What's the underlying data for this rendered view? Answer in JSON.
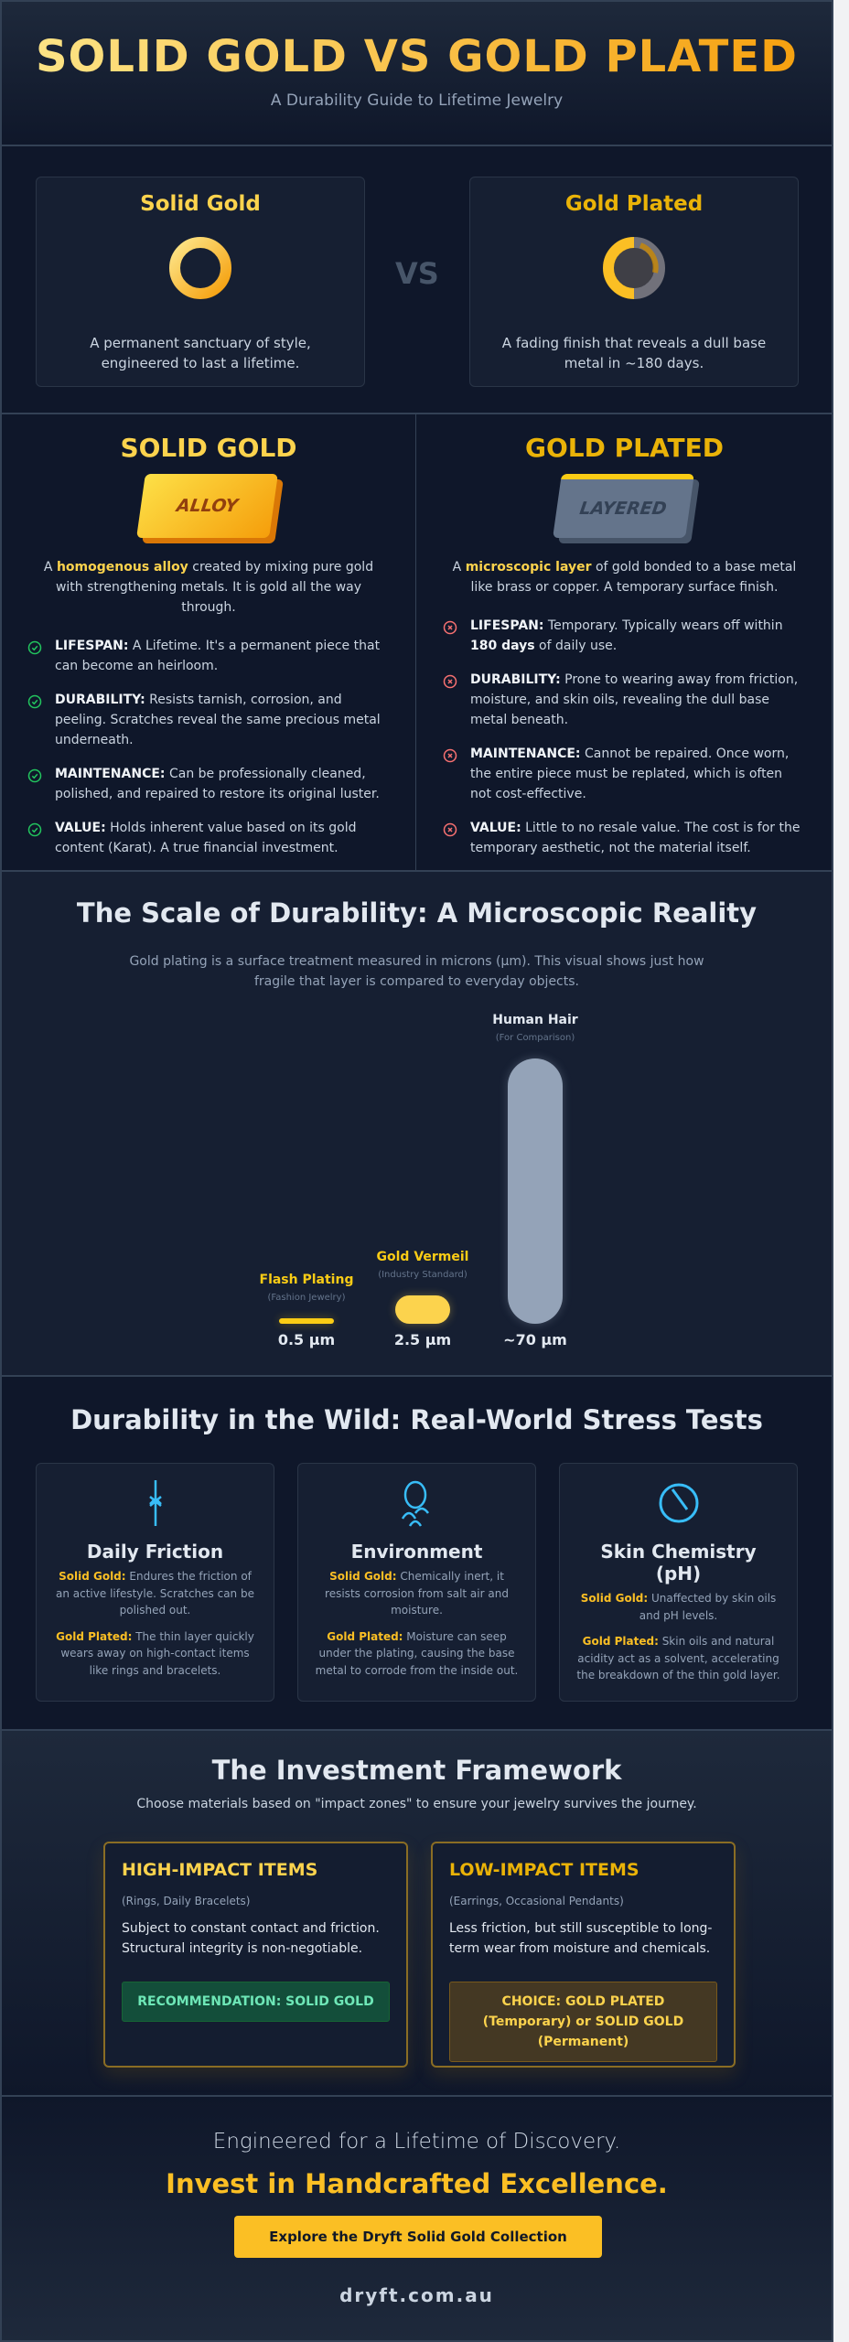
{
  "header": {
    "title": "SOLID GOLD VS GOLD PLATED",
    "subtitle": "A Durability Guide to Lifetime Jewelry"
  },
  "compare": {
    "vs": "VS",
    "solid": {
      "title": "Solid Gold",
      "text": "A permanent sanctuary of style, engineered to last a lifetime.",
      "icon": "solid-ring-icon"
    },
    "plated": {
      "title": "Gold Plated",
      "text": "A fading finish that reveals a dull base metal in ~180 days.",
      "icon": "worn-ring-icon"
    }
  },
  "details": {
    "solid": {
      "title": "SOLID GOLD",
      "bar_label": "ALLOY",
      "desc_pre": "A ",
      "desc_hl": "homogenous alloy",
      "desc_post": " created by mixing pure gold with strengthening metals. It is gold all the way through.",
      "items": [
        {
          "label": "LIFESPAN:",
          "text": " A Lifetime. It's a permanent piece that can become an heirloom."
        },
        {
          "label": "DURABILITY:",
          "text": " Resists tarnish, corrosion, and peeling. Scratches reveal the same precious metal underneath."
        },
        {
          "label": "MAINTENANCE:",
          "text": " Can be professionally cleaned, polished, and repaired to restore its original luster."
        },
        {
          "label": "VALUE:",
          "text": " Holds inherent value based on its gold content (Karat). A true financial investment."
        }
      ]
    },
    "plated": {
      "title": "GOLD PLATED",
      "bar_label": "LAYERED",
      "desc_pre": "A ",
      "desc_hl": "microscopic layer",
      "desc_post": " of gold bonded to a base metal like brass or copper. A temporary surface finish.",
      "items": [
        {
          "label": "LIFESPAN:",
          "text": " Temporary. Typically wears off within ",
          "bold": "180 days",
          "tail": " of daily use."
        },
        {
          "label": "DURABILITY:",
          "text": " Prone to wearing away from friction, moisture, and skin oils, revealing the dull base metal beneath."
        },
        {
          "label": "MAINTENANCE:",
          "text": " Cannot be repaired. Once worn, the entire piece must be replated, which is often not cost-effective."
        },
        {
          "label": "VALUE:",
          "text": " Little to no resale value. The cost is for the temporary aesthetic, not the material itself."
        }
      ]
    }
  },
  "scale": {
    "title": "The Scale of Durability: A Microscopic Reality",
    "subtitle": "Gold plating is a surface treatment measured in microns (µm). This visual shows just how fragile that layer is compared to everyday objects.",
    "items": [
      {
        "name": "Flash Plating",
        "note": "(Fashion Jewelry)",
        "value_label": "0.5 µm",
        "microns": 0.5,
        "color": "#facc15"
      },
      {
        "name": "Gold Vermeil",
        "note": "(Industry Standard)",
        "value_label": "2.5 µm",
        "microns": 2.5,
        "color": "#fcd34d"
      },
      {
        "name": "Human Hair",
        "note": "(For Comparison)",
        "value_label": "~70 µm",
        "microns": 70,
        "color": "#94a3b8"
      }
    ]
  },
  "wild": {
    "title": "Durability in the Wild: Real-World Stress Tests",
    "cards": [
      {
        "icon": "friction-icon",
        "title": "Daily Friction",
        "solid_label": "Solid Gold:",
        "solid": " Endures the friction of an active lifestyle. Scratches can be polished out.",
        "plated_label": "Gold Plated:",
        "plated": " The thin layer quickly wears away on high-contact items like rings and bracelets."
      },
      {
        "icon": "environment-icon",
        "title": "Environment",
        "solid_label": "Solid Gold:",
        "solid": " Chemically inert, it resists corrosion from salt air and moisture.",
        "plated_label": "Gold Plated:",
        "plated": " Moisture can seep under the plating, causing the base metal to corrode from the inside out."
      },
      {
        "icon": "prohibited-icon",
        "title": "Skin Chemistry (pH)",
        "solid_label": "Solid Gold:",
        "solid": " Unaffected by skin oils and pH levels.",
        "plated_label": "Gold Plated:",
        "plated": " Skin oils and natural acidity act as a solvent, accelerating the breakdown of the thin gold layer."
      }
    ]
  },
  "invest": {
    "title": "The Investment Framework",
    "subtitle": "Choose materials based on \"impact zones\" to ensure your jewelry survives the journey.",
    "high": {
      "title": "HIGH-IMPACT ITEMS",
      "examples": "(Rings, Daily Bracelets)",
      "text": "Subject to constant contact and friction. Structural integrity is non-negotiable.",
      "rec": "RECOMMENDATION: SOLID GOLD"
    },
    "low": {
      "title": "LOW-IMPACT ITEMS",
      "examples": "(Earrings, Occasional Pendants)",
      "text": "Less friction, but still susceptible to long-term wear from moisture and chemicals.",
      "rec": "CHOICE: GOLD PLATED (Temporary) or SOLID GOLD (Permanent)"
    }
  },
  "footer": {
    "tagline": "Engineered for a Lifetime of Discovery.",
    "headline": "Invest in Handcrafted Excellence.",
    "cta": "Explore the Dryft Solid Gold Collection",
    "url": "dryft.com.au"
  },
  "colors": {
    "gold": "#fbbf24",
    "accent_blue": "#38bdf8",
    "check": "#22c55e",
    "cross": "#f87171",
    "background": "#0f172a"
  }
}
